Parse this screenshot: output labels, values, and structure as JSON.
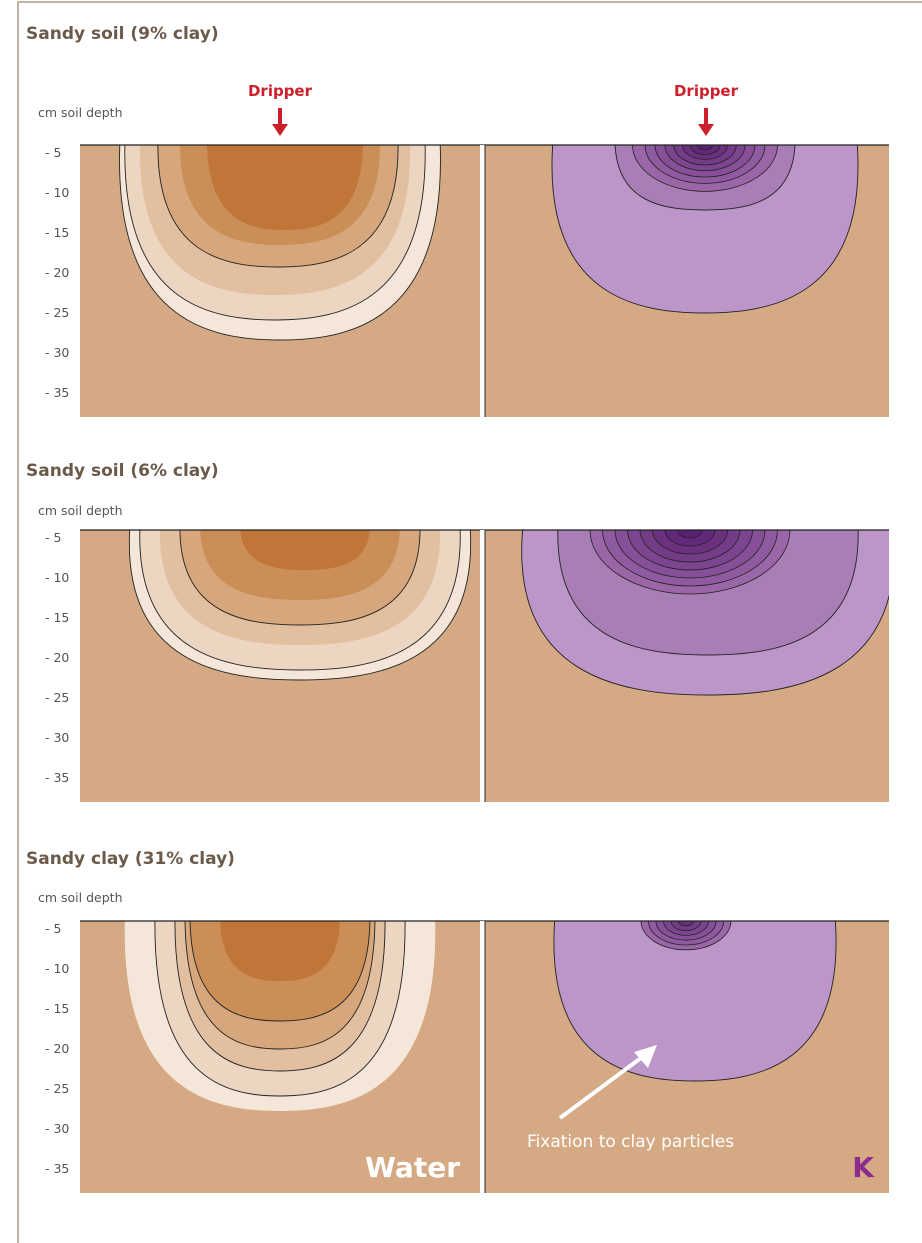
{
  "panels": [
    {
      "title": "Sandy soil (9% clay)",
      "depth_label": "cm soil depth",
      "depth_ticks": [
        "- 5",
        "- 10",
        "- 15",
        "- 20",
        "- 25",
        "- 30",
        "- 35"
      ],
      "dripper": [
        "Dripper",
        "Dripper"
      ]
    },
    {
      "title": "Sandy soil (6% clay)",
      "depth_label": "cm soil depth",
      "depth_ticks": [
        "- 5",
        "- 10",
        "- 15",
        "- 20",
        "- 25",
        "- 30",
        "- 35"
      ]
    },
    {
      "title": "Sandy clay (31% clay)",
      "depth_label": "cm soil depth",
      "depth_ticks": [
        "- 5",
        "- 10",
        "- 15",
        "- 20",
        "- 25",
        "- 30",
        "- 35"
      ]
    }
  ],
  "labels": {
    "water": "Water",
    "k": "K",
    "annotation": "Fixation to clay particles"
  }
}
